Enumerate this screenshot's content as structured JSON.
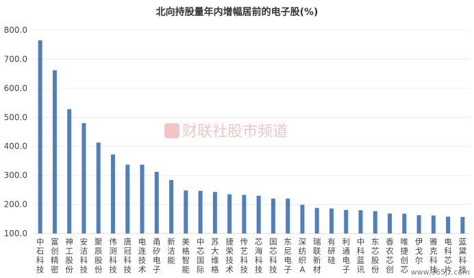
{
  "chart_data": {
    "type": "bar",
    "title": "北向持股量年内增幅居前的电子股(%)",
    "xlabel": "",
    "ylabel": "",
    "ylim": [
      100,
      800
    ],
    "yticks": [
      "100.0",
      "200.0",
      "300.0",
      "400.0",
      "500.0",
      "600.0",
      "700.0",
      "800.0"
    ],
    "grid": true,
    "bar_color": "#4e7fbf",
    "categories": [
      "中石科技",
      "富创精密",
      "神工股份",
      "安洁科技",
      "聚辰股份",
      "伟测科技",
      "唐冠科技",
      "电连技术",
      "甬矽电子",
      "新洁能",
      "美格智能",
      "中芯国际",
      "苏大维格",
      "捷荣技术",
      "传艺科技",
      "芯海科技",
      "国芯科技",
      "东尼电子",
      "深纺织A",
      "瑞联新材",
      "有研硅",
      "利通电子",
      "中科蓝讯",
      "东芯股份",
      "香农芯创",
      "唯捷创芯",
      "伊戈尔",
      "雅克科技",
      "电科芯片",
      "蓝黛科技"
    ],
    "values": [
      765,
      662,
      528,
      480,
      413,
      372,
      337,
      337,
      312,
      284,
      248,
      247,
      243,
      235,
      233,
      230,
      220,
      220,
      199,
      188,
      186,
      181,
      180,
      177,
      169,
      168,
      163,
      162,
      158,
      157
    ]
  },
  "watermark": {
    "text": "财联社股市频道",
    "color": "#e35d5d"
  },
  "source_note": "www.365jz.com"
}
